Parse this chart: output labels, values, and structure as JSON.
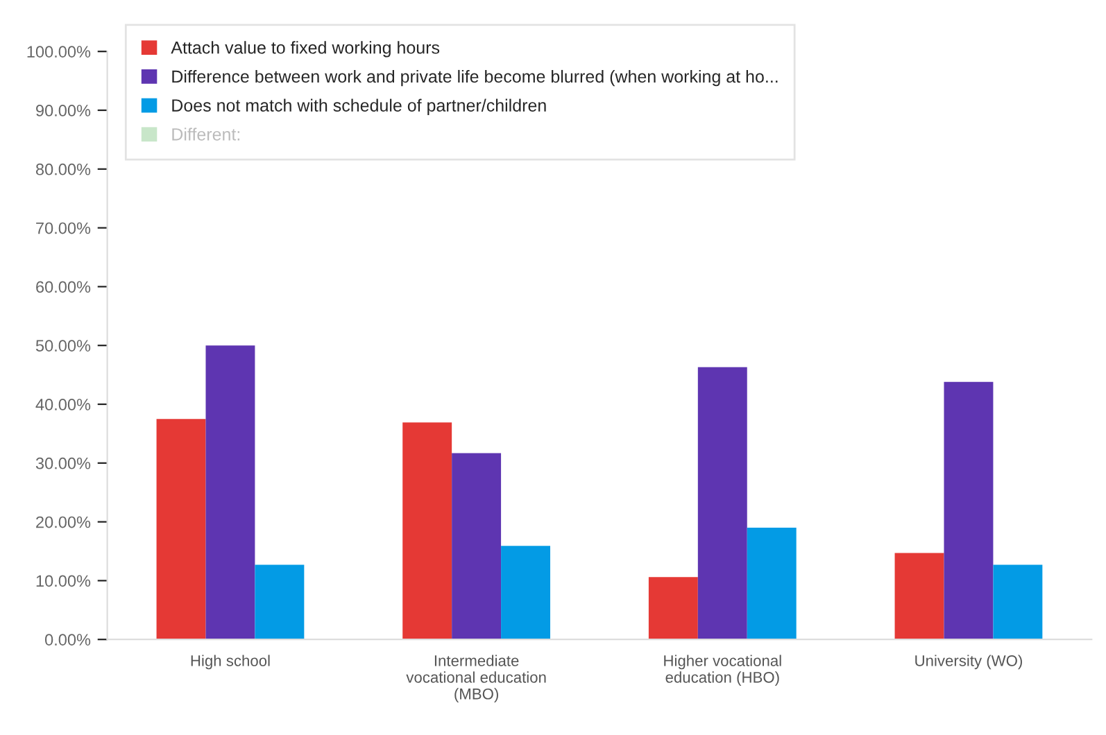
{
  "chart_data": {
    "type": "bar",
    "categories": [
      "High school",
      "Intermediate\nvocational education\n(MBO)",
      "Higher vocational\neducation (HBO)",
      "University (WO)"
    ],
    "series": [
      {
        "name": "Attach value to fixed working hours",
        "color": "#e53935",
        "values": [
          37.5,
          36.9,
          10.6,
          14.7
        ]
      },
      {
        "name": "Difference between work and private life become blurred (when working at ho...",
        "color": "#5e35b1",
        "values": [
          50.0,
          31.7,
          46.3,
          43.8
        ]
      },
      {
        "name": "Does not match with schedule of partner/children",
        "color": "#039be5",
        "values": [
          12.7,
          15.9,
          19.0,
          12.7
        ]
      },
      {
        "name": "Different:",
        "color": "#c8e6c9",
        "values": [
          null,
          null,
          null,
          null
        ]
      }
    ],
    "ylim": [
      0,
      100
    ],
    "yticks": [
      {
        "value": 0,
        "label": "0.00%"
      },
      {
        "value": 10,
        "label": "10.00%"
      },
      {
        "value": 20,
        "label": "20.00%"
      },
      {
        "value": 30,
        "label": "30.00%"
      },
      {
        "value": 40,
        "label": "40.00%"
      },
      {
        "value": 50,
        "label": "50.00%"
      },
      {
        "value": 60,
        "label": "60.00%"
      },
      {
        "value": 70,
        "label": "70.00%"
      },
      {
        "value": 80,
        "label": "80.00%"
      },
      {
        "value": 90,
        "label": "90.00%"
      },
      {
        "value": 100,
        "label": "100.00%"
      }
    ],
    "grid": false,
    "legend": "top left"
  }
}
